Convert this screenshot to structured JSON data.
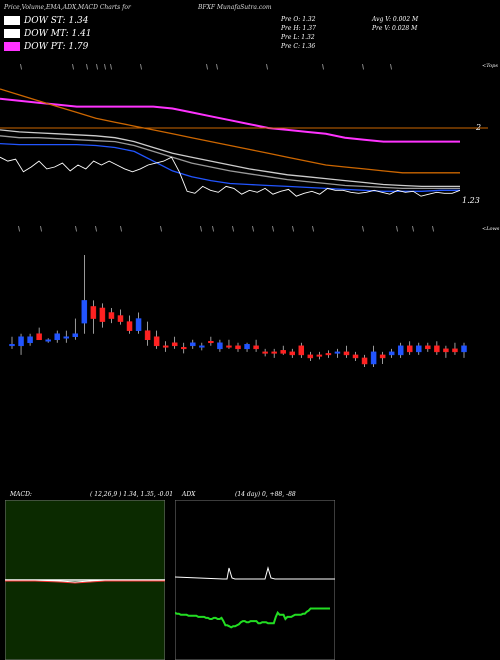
{
  "header": {
    "title_left": "Price,Volume,EMA,ADX,MACD Charts for",
    "title_right": "BFXF MunafaSutra.com"
  },
  "legend": [
    {
      "label": "DOW ST: 1.34",
      "color": "#ffffff"
    },
    {
      "label": "DOW MT: 1.41",
      "color": "#ffffff"
    },
    {
      "label": "DOW PT: 1.79",
      "color": "#ff33ff"
    }
  ],
  "prev": {
    "o": "Pre   O: 1.32",
    "h": "Pre   H: 1.37",
    "l": "Pre   L: 1.32",
    "c": "Pre   C: 1.36",
    "avg_vol": "Avg V: 0.002  M",
    "pre_vol": "Pre   V: 0.028 M"
  },
  "chart_data": [
    {
      "type": "line",
      "name": "price-ema-panel",
      "annotations": [
        "2",
        "1.23",
        "<Tops",
        "<Lows"
      ],
      "y_ticks": [
        "2",
        "1.23"
      ],
      "hline": 2,
      "price_close": [
        1.7,
        1.66,
        1.68,
        1.55,
        1.6,
        1.66,
        1.58,
        1.6,
        1.64,
        1.56,
        1.62,
        1.58,
        1.66,
        1.62,
        1.66,
        1.62,
        1.58,
        1.55,
        1.58,
        1.62,
        1.64,
        1.66,
        1.7,
        1.55,
        1.35,
        1.33,
        1.4,
        1.36,
        1.34,
        1.4,
        1.38,
        1.32,
        1.36,
        1.34,
        1.38,
        1.32,
        1.35,
        1.37,
        1.3,
        1.33,
        1.35,
        1.32,
        1.38,
        1.36,
        1.36,
        1.34,
        1.33,
        1.34,
        1.36,
        1.34,
        1.32,
        1.36,
        1.34,
        1.35,
        1.3,
        1.32,
        1.34,
        1.33,
        1.33,
        1.36
      ],
      "ema_series": [
        {
          "color": "#ff33ff",
          "values": [
            2.3,
            2.28,
            2.26,
            2.24,
            2.22,
            2.22,
            2.22,
            2.22,
            2.22,
            2.2,
            2.16,
            2.12,
            2.08,
            2.04,
            2.0,
            1.98,
            1.96,
            1.94,
            1.9,
            1.88,
            1.86,
            1.86,
            1.86,
            1.86,
            1.86
          ]
        },
        {
          "color": "#cc6600",
          "values": [
            2.4,
            2.34,
            2.28,
            2.22,
            2.16,
            2.1,
            2.06,
            2.02,
            1.98,
            1.94,
            1.9,
            1.86,
            1.82,
            1.78,
            1.74,
            1.7,
            1.66,
            1.62,
            1.6,
            1.58,
            1.56,
            1.54,
            1.54,
            1.54,
            1.54
          ]
        },
        {
          "color": "#cccccc",
          "values": [
            1.98,
            1.96,
            1.95,
            1.94,
            1.93,
            1.92,
            1.9,
            1.86,
            1.8,
            1.74,
            1.7,
            1.66,
            1.62,
            1.58,
            1.55,
            1.52,
            1.5,
            1.48,
            1.46,
            1.44,
            1.42,
            1.41,
            1.4,
            1.4,
            1.4
          ]
        },
        {
          "color": "#999999",
          "values": [
            1.92,
            1.9,
            1.9,
            1.89,
            1.88,
            1.87,
            1.86,
            1.82,
            1.76,
            1.7,
            1.64,
            1.6,
            1.56,
            1.53,
            1.5,
            1.47,
            1.45,
            1.43,
            1.41,
            1.4,
            1.39,
            1.38,
            1.38,
            1.38,
            1.38
          ]
        },
        {
          "color": "#2255ff",
          "values": [
            1.84,
            1.83,
            1.83,
            1.83,
            1.83,
            1.82,
            1.8,
            1.76,
            1.66,
            1.56,
            1.5,
            1.46,
            1.43,
            1.42,
            1.41,
            1.4,
            1.39,
            1.38,
            1.37,
            1.36,
            1.35,
            1.35,
            1.35,
            1.36,
            1.36
          ]
        }
      ]
    },
    {
      "type": "bar",
      "name": "candles-panel",
      "candles": [
        {
          "o": 1.3,
          "h": 1.36,
          "l": 1.28,
          "c": 1.31,
          "up": true
        },
        {
          "o": 1.3,
          "h": 1.38,
          "l": 1.24,
          "c": 1.36,
          "up": true
        },
        {
          "o": 1.32,
          "h": 1.38,
          "l": 1.3,
          "c": 1.36,
          "up": true
        },
        {
          "o": 1.38,
          "h": 1.42,
          "l": 1.34,
          "c": 1.34,
          "up": false
        },
        {
          "o": 1.33,
          "h": 1.35,
          "l": 1.32,
          "c": 1.34,
          "up": true
        },
        {
          "o": 1.34,
          "h": 1.4,
          "l": 1.32,
          "c": 1.38,
          "up": true
        },
        {
          "o": 1.35,
          "h": 1.4,
          "l": 1.32,
          "c": 1.36,
          "up": true
        },
        {
          "o": 1.36,
          "h": 1.48,
          "l": 1.34,
          "c": 1.38,
          "up": true
        },
        {
          "o": 1.45,
          "h": 1.9,
          "l": 1.38,
          "c": 1.6,
          "up": true
        },
        {
          "o": 1.48,
          "h": 1.6,
          "l": 1.38,
          "c": 1.56,
          "up": false
        },
        {
          "o": 1.55,
          "h": 1.58,
          "l": 1.42,
          "c": 1.46,
          "up": false
        },
        {
          "o": 1.52,
          "h": 1.55,
          "l": 1.45,
          "c": 1.48,
          "up": false
        },
        {
          "o": 1.5,
          "h": 1.54,
          "l": 1.44,
          "c": 1.46,
          "up": false
        },
        {
          "o": 1.46,
          "h": 1.5,
          "l": 1.38,
          "c": 1.4,
          "up": false
        },
        {
          "o": 1.4,
          "h": 1.52,
          "l": 1.38,
          "c": 1.48,
          "up": true
        },
        {
          "o": 1.4,
          "h": 1.46,
          "l": 1.3,
          "c": 1.34,
          "up": false
        },
        {
          "o": 1.36,
          "h": 1.4,
          "l": 1.28,
          "c": 1.3,
          "up": false
        },
        {
          "o": 1.3,
          "h": 1.33,
          "l": 1.26,
          "c": 1.29,
          "up": false
        },
        {
          "o": 1.32,
          "h": 1.36,
          "l": 1.28,
          "c": 1.3,
          "up": false
        },
        {
          "o": 1.29,
          "h": 1.32,
          "l": 1.25,
          "c": 1.28,
          "up": false
        },
        {
          "o": 1.3,
          "h": 1.34,
          "l": 1.28,
          "c": 1.32,
          "up": true
        },
        {
          "o": 1.29,
          "h": 1.32,
          "l": 1.27,
          "c": 1.3,
          "up": true
        },
        {
          "o": 1.33,
          "h": 1.36,
          "l": 1.3,
          "c": 1.32,
          "up": false
        },
        {
          "o": 1.28,
          "h": 1.34,
          "l": 1.26,
          "c": 1.32,
          "up": true
        },
        {
          "o": 1.3,
          "h": 1.34,
          "l": 1.28,
          "c": 1.29,
          "up": false
        },
        {
          "o": 1.3,
          "h": 1.32,
          "l": 1.26,
          "c": 1.28,
          "up": false
        },
        {
          "o": 1.28,
          "h": 1.32,
          "l": 1.26,
          "c": 1.31,
          "up": true
        },
        {
          "o": 1.3,
          "h": 1.34,
          "l": 1.26,
          "c": 1.28,
          "up": false
        },
        {
          "o": 1.26,
          "h": 1.28,
          "l": 1.23,
          "c": 1.25,
          "up": false
        },
        {
          "o": 1.25,
          "h": 1.28,
          "l": 1.22,
          "c": 1.26,
          "up": false
        },
        {
          "o": 1.27,
          "h": 1.3,
          "l": 1.24,
          "c": 1.25,
          "up": false
        },
        {
          "o": 1.24,
          "h": 1.28,
          "l": 1.22,
          "c": 1.26,
          "up": false
        },
        {
          "o": 1.3,
          "h": 1.32,
          "l": 1.22,
          "c": 1.24,
          "up": false
        },
        {
          "o": 1.22,
          "h": 1.26,
          "l": 1.2,
          "c": 1.24,
          "up": false
        },
        {
          "o": 1.23,
          "h": 1.26,
          "l": 1.21,
          "c": 1.24,
          "up": false
        },
        {
          "o": 1.24,
          "h": 1.27,
          "l": 1.22,
          "c": 1.25,
          "up": false
        },
        {
          "o": 1.25,
          "h": 1.28,
          "l": 1.22,
          "c": 1.26,
          "up": true
        },
        {
          "o": 1.26,
          "h": 1.3,
          "l": 1.22,
          "c": 1.24,
          "up": false
        },
        {
          "o": 1.22,
          "h": 1.26,
          "l": 1.2,
          "c": 1.24,
          "up": false
        },
        {
          "o": 1.22,
          "h": 1.24,
          "l": 1.16,
          "c": 1.18,
          "up": false
        },
        {
          "o": 1.18,
          "h": 1.3,
          "l": 1.16,
          "c": 1.26,
          "up": true
        },
        {
          "o": 1.22,
          "h": 1.26,
          "l": 1.18,
          "c": 1.24,
          "up": false
        },
        {
          "o": 1.24,
          "h": 1.28,
          "l": 1.22,
          "c": 1.26,
          "up": true
        },
        {
          "o": 1.24,
          "h": 1.32,
          "l": 1.22,
          "c": 1.3,
          "up": true
        },
        {
          "o": 1.3,
          "h": 1.33,
          "l": 1.24,
          "c": 1.26,
          "up": false
        },
        {
          "o": 1.26,
          "h": 1.32,
          "l": 1.24,
          "c": 1.3,
          "up": true
        },
        {
          "o": 1.28,
          "h": 1.32,
          "l": 1.26,
          "c": 1.3,
          "up": false
        },
        {
          "o": 1.3,
          "h": 1.33,
          "l": 1.24,
          "c": 1.26,
          "up": false
        },
        {
          "o": 1.26,
          "h": 1.3,
          "l": 1.22,
          "c": 1.28,
          "up": false
        },
        {
          "o": 1.28,
          "h": 1.32,
          "l": 1.24,
          "c": 1.26,
          "up": false
        },
        {
          "o": 1.26,
          "h": 1.32,
          "l": 1.22,
          "c": 1.3,
          "up": true
        }
      ]
    },
    {
      "type": "line",
      "name": "macd-panel",
      "title": "MACD:",
      "params": "( 12,26,9 ) 1.34,  1.35, -0.01",
      "background": "#0b2a00"
    },
    {
      "type": "line",
      "name": "adx-panel",
      "title": "ADX",
      "params": "(14  day) 0,  +88, -88",
      "adx_values": [
        26,
        25,
        25,
        24,
        24,
        24,
        24,
        23,
        23,
        23,
        23,
        23,
        22,
        22,
        22,
        22,
        21,
        21,
        20,
        20,
        21,
        21,
        20,
        20,
        21,
        18,
        14,
        14,
        13,
        12,
        13,
        13,
        14,
        15,
        17,
        18,
        18,
        17,
        17,
        18,
        18,
        18,
        18,
        16,
        16,
        17,
        17,
        17,
        16,
        16,
        16,
        16,
        22,
        26,
        24,
        24,
        24,
        20,
        22,
        22,
        22,
        23,
        24,
        24,
        24,
        24,
        25,
        25,
        27,
        28,
        30,
        30,
        30,
        30,
        30,
        30,
        30,
        30,
        30,
        30,
        30
      ],
      "di_values": [
        10,
        10,
        10,
        10,
        10,
        10,
        10,
        10,
        10,
        10,
        10,
        10,
        10,
        10,
        10,
        10,
        10,
        10,
        10,
        10,
        10,
        10,
        10,
        10,
        10,
        10,
        10,
        10,
        10,
        10,
        10,
        14,
        10,
        10,
        10,
        10,
        10,
        10,
        10,
        10,
        10,
        10,
        10,
        10,
        10,
        10,
        10,
        10,
        10,
        10,
        10,
        10,
        10,
        10,
        10,
        10,
        10,
        10,
        10,
        10,
        10,
        10,
        10,
        10,
        10,
        10,
        10,
        10,
        10,
        10,
        10,
        10,
        10,
        10,
        10,
        10,
        10,
        10,
        10,
        10,
        10
      ]
    }
  ]
}
